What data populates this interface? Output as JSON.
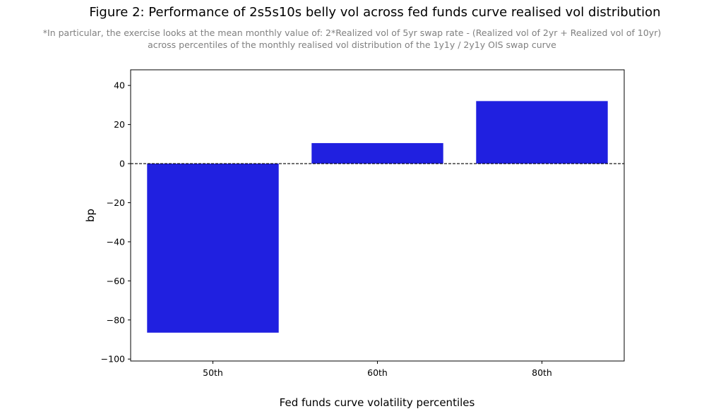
{
  "chart_data": {
    "type": "bar",
    "title": "Figure 2: Performance of 2s5s10s belly vol across fed funds curve realised vol distribution",
    "subtitle": [
      "*In particular, the exercise looks at the mean monthly value of: 2*Realized vol of 5yr swap rate - (Realized vol of 2yr + Realized vol of 10yr)",
      "across percentiles of the monthly realised vol distribution of the 1y1y / 2y1y OIS swap curve"
    ],
    "xlabel": "Fed funds curve volatility percentiles",
    "ylabel": "bp",
    "categories": [
      "50th",
      "60th",
      "80th"
    ],
    "values": [
      -86.5,
      10.5,
      32
    ],
    "ylim": [
      -101,
      48
    ],
    "yticks": [
      40,
      20,
      0,
      -20,
      -40,
      -60,
      -80,
      -100
    ],
    "ytick_labels": [
      "40",
      "20",
      "0",
      "−20",
      "−40",
      "−60",
      "−80",
      "−100"
    ],
    "bar_color": "#2020e0",
    "reference_line": {
      "y": 0,
      "style": "dashed",
      "color": "#000000"
    },
    "grid": false,
    "legend": "none"
  }
}
